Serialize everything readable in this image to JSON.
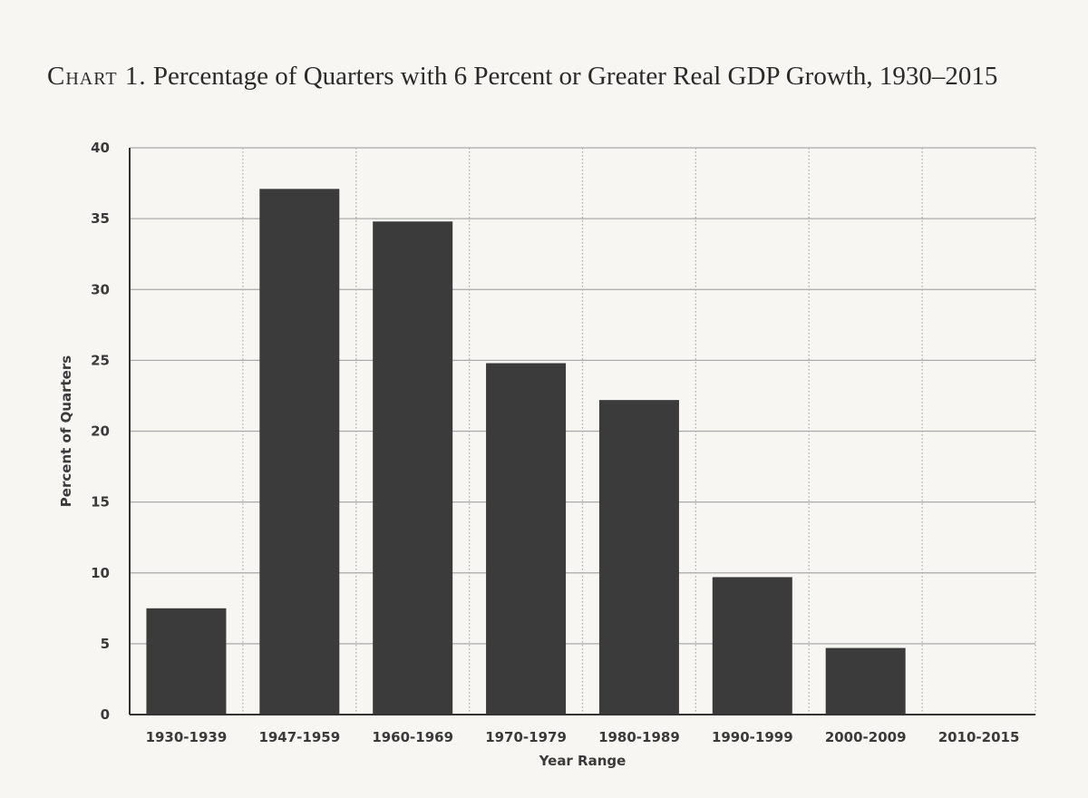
{
  "title": {
    "label": "Chart 1.",
    "text": "Percentage of Quarters with 6 Percent or Greater Real GDP Growth, 1930–2015"
  },
  "chart_data": {
    "type": "bar",
    "title": "Percentage of Quarters with 6 Percent or Greater Real GDP Growth, 1930–2015",
    "xlabel": "Year Range",
    "ylabel": "Percent of Quarters",
    "categories": [
      "1930-1939",
      "1947-1959",
      "1960-1969",
      "1970-1979",
      "1980-1989",
      "1990-1999",
      "2000-2009",
      "2010-2015"
    ],
    "values": [
      7.5,
      37.1,
      34.8,
      24.8,
      22.2,
      9.7,
      4.7,
      0
    ],
    "ylim": [
      0,
      40
    ],
    "yticks": [
      0,
      5,
      10,
      15,
      20,
      25,
      30,
      35,
      40
    ],
    "grid": true,
    "bar_color": "#3b3b3b",
    "grid_color": "#a9a9a9"
  }
}
